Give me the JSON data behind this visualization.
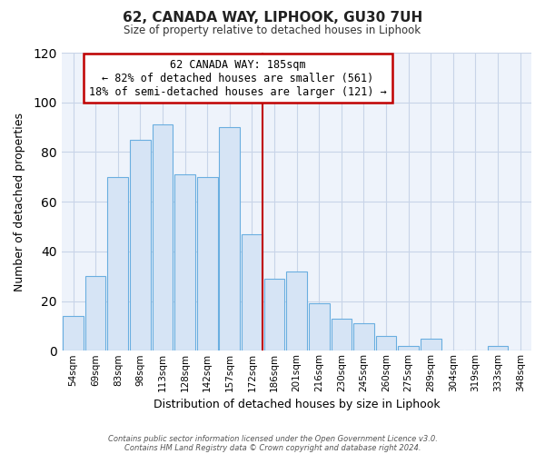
{
  "title": "62, CANADA WAY, LIPHOOK, GU30 7UH",
  "subtitle": "Size of property relative to detached houses in Liphook",
  "xlabel": "Distribution of detached houses by size in Liphook",
  "ylabel": "Number of detached properties",
  "categories": [
    "54sqm",
    "69sqm",
    "83sqm",
    "98sqm",
    "113sqm",
    "128sqm",
    "142sqm",
    "157sqm",
    "172sqm",
    "186sqm",
    "201sqm",
    "216sqm",
    "230sqm",
    "245sqm",
    "260sqm",
    "275sqm",
    "289sqm",
    "304sqm",
    "319sqm",
    "333sqm",
    "348sqm"
  ],
  "values": [
    14,
    30,
    70,
    85,
    91,
    71,
    70,
    90,
    47,
    29,
    32,
    19,
    13,
    11,
    6,
    2,
    5,
    0,
    0,
    2,
    0
  ],
  "bar_color": "#d6e4f5",
  "bar_edge_color": "#6aaee0",
  "highlight_line_color": "#c00000",
  "annotation_line1": "62 CANADA WAY: 185sqm",
  "annotation_line2": "← 82% of detached houses are smaller (561)",
  "annotation_line3": "18% of semi-detached houses are larger (121) →",
  "annotation_box_edge_color": "#c00000",
  "ylim": [
    0,
    120
  ],
  "yticks": [
    0,
    20,
    40,
    60,
    80,
    100,
    120
  ],
  "footnote_line1": "Contains HM Land Registry data © Crown copyright and database right 2024.",
  "footnote_line2": "Contains public sector information licensed under the Open Government Licence v3.0.",
  "background_color": "#ffffff",
  "plot_bg_color": "#eef3fb",
  "grid_color": "#c8d4e8"
}
